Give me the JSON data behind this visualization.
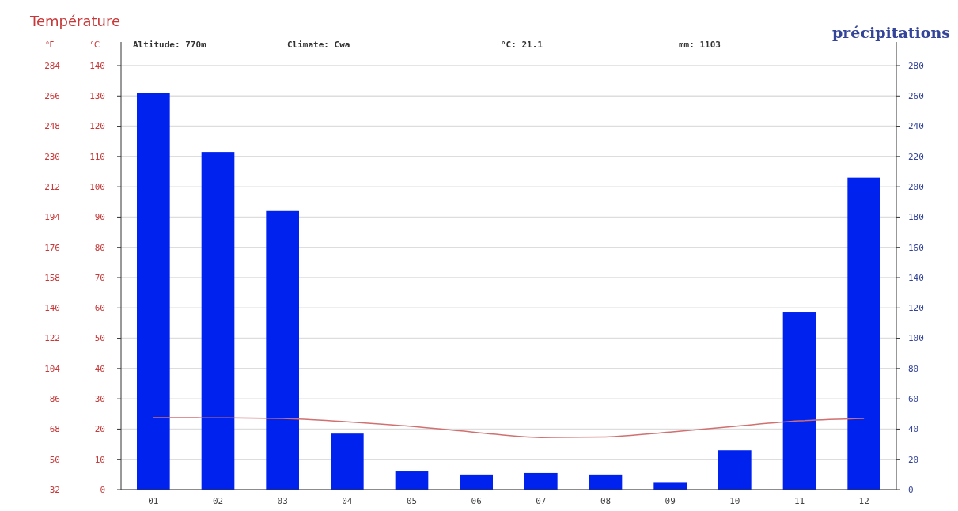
{
  "chart_data": {
    "type": "bar",
    "title": "Température",
    "ylabel": "°C",
    "y3label": "°F",
    "y2label": "précipitations",
    "annotations": [
      "Altitude: 770m",
      "Climate: Cwa",
      "°C: 21.1",
      "mm: 1103"
    ],
    "categories": [
      "01",
      "02",
      "03",
      "04",
      "05",
      "06",
      "07",
      "08",
      "09",
      "10",
      "11",
      "12"
    ],
    "series": [
      {
        "axis": "y2",
        "color": "#0022ee",
        "values": [
          262,
          223,
          184,
          37,
          12,
          10,
          11,
          10,
          5,
          26,
          117,
          206
        ]
      },
      {
        "type": "line",
        "axis": "y",
        "color": "#d07070",
        "values": [
          23.8,
          23.7,
          23.5,
          22.4,
          20.9,
          18.9,
          17.2,
          17.4,
          19.0,
          20.9,
          22.7,
          23.5
        ]
      }
    ],
    "ylim": [
      0,
      140
    ],
    "yticks": [
      0,
      10,
      20,
      30,
      40,
      50,
      60,
      70,
      80,
      90,
      100,
      110,
      120,
      130,
      140
    ],
    "y3lim": [
      32,
      284
    ],
    "y3ticks": [
      32,
      50,
      68,
      86,
      104,
      122,
      140,
      158,
      176,
      194,
      212,
      230,
      248,
      266,
      284
    ],
    "y2lim": [
      0,
      280
    ],
    "y2ticks": [
      0,
      20,
      40,
      60,
      80,
      100,
      120,
      140,
      160,
      180,
      200,
      220,
      240,
      260,
      280
    ],
    "grid": "y",
    "line_style": "solid",
    "marker": "none"
  }
}
